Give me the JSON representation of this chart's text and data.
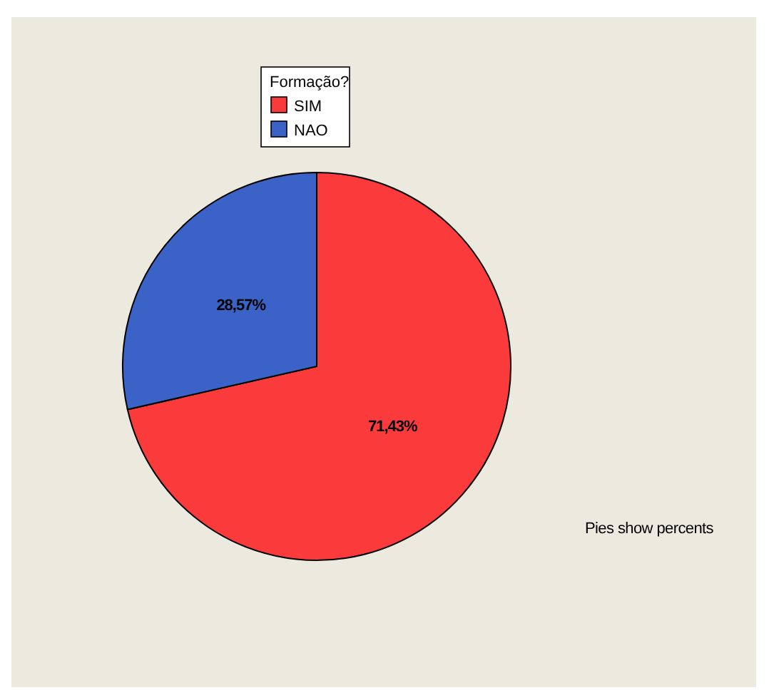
{
  "chart_data": {
    "type": "pie",
    "legend_title": "Formação?",
    "categories": [
      "SIM",
      "NAO"
    ],
    "values": [
      71.43,
      28.57
    ],
    "colors": [
      "#fb3b3b",
      "#3b62c6"
    ],
    "value_labels": [
      "71,43%",
      "28,57%"
    ],
    "legend": "top",
    "annotations": [
      "Pies show percents"
    ]
  }
}
